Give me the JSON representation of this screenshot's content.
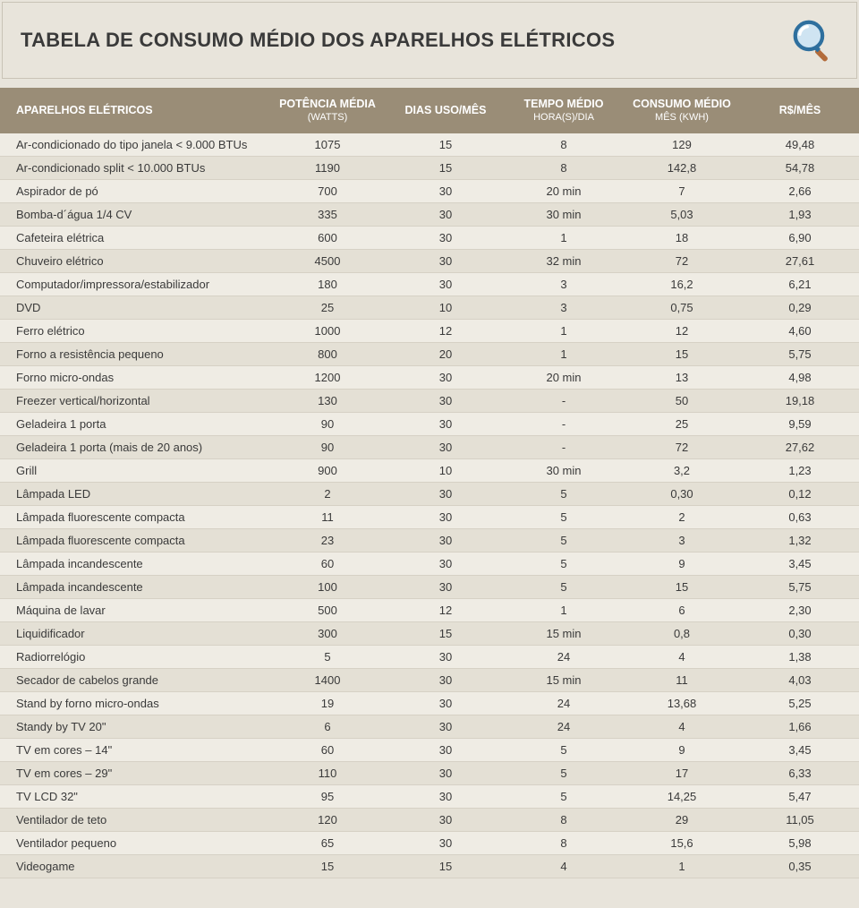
{
  "title": "TABELA DE CONSUMO MÉDIO DOS APARELHOS ELÉTRICOS",
  "icon": "magnifier-icon",
  "columns": [
    {
      "label": "APARELHOS ELÉTRICOS",
      "sub": ""
    },
    {
      "label": "POTÊNCIA MÉDIA",
      "sub": "(WATTS)"
    },
    {
      "label": "DIAS USO/MÊS",
      "sub": ""
    },
    {
      "label": "TEMPO MÉDIO",
      "sub": "HORA(S)/DIA"
    },
    {
      "label": "CONSUMO MÉDIO",
      "sub": "MÊS (KWH)"
    },
    {
      "label": "R$/MÊS",
      "sub": ""
    }
  ],
  "rows": [
    [
      "Ar-condicionado do tipo janela < 9.000 BTUs",
      "1075",
      "15",
      "8",
      "129",
      "49,48"
    ],
    [
      "Ar-condicionado split < 10.000 BTUs",
      "1190",
      "15",
      "8",
      "142,8",
      "54,78"
    ],
    [
      "Aspirador de pó",
      "700",
      "30",
      "20 min",
      "7",
      "2,66"
    ],
    [
      "Bomba-d´água 1/4 CV",
      "335",
      "30",
      "30 min",
      "5,03",
      "1,93"
    ],
    [
      "Cafeteira elétrica",
      "600",
      "30",
      "1",
      "18",
      "6,90"
    ],
    [
      "Chuveiro elétrico",
      "4500",
      "30",
      "32 min",
      "72",
      "27,61"
    ],
    [
      "Computador/impressora/estabilizador",
      "180",
      "30",
      "3",
      "16,2",
      "6,21"
    ],
    [
      "DVD",
      "25",
      "10",
      "3",
      "0,75",
      "0,29"
    ],
    [
      "Ferro elétrico",
      "1000",
      "12",
      "1",
      "12",
      "4,60"
    ],
    [
      "Forno a resistência pequeno",
      "800",
      "20",
      "1",
      "15",
      "5,75"
    ],
    [
      "Forno micro-ondas",
      "1200",
      "30",
      "20 min",
      "13",
      "4,98"
    ],
    [
      "Freezer vertical/horizontal",
      "130",
      "30",
      "-",
      "50",
      "19,18"
    ],
    [
      "Geladeira 1 porta",
      "90",
      "30",
      "-",
      "25",
      "9,59"
    ],
    [
      "Geladeira 1 porta (mais de 20 anos)",
      "90",
      "30",
      "-",
      "72",
      "27,62"
    ],
    [
      "Grill",
      "900",
      "10",
      "30 min",
      "3,2",
      "1,23"
    ],
    [
      "Lâmpada LED",
      "2",
      "30",
      "5",
      "0,30",
      "0,12"
    ],
    [
      "Lâmpada fluorescente compacta",
      "11",
      "30",
      "5",
      "2",
      "0,63"
    ],
    [
      "Lâmpada fluorescente compacta",
      "23",
      "30",
      "5",
      "3",
      "1,32"
    ],
    [
      "Lâmpada incandescente",
      "60",
      "30",
      "5",
      "9",
      "3,45"
    ],
    [
      "Lâmpada incandescente",
      "100",
      "30",
      "5",
      "15",
      "5,75"
    ],
    [
      "Máquina de lavar",
      "500",
      "12",
      "1",
      "6",
      "2,30"
    ],
    [
      "Liquidificador",
      "300",
      "15",
      "15 min",
      "0,8",
      "0,30"
    ],
    [
      "Radiorrelógio",
      "5",
      "30",
      "24",
      "4",
      "1,38"
    ],
    [
      "Secador de cabelos grande",
      "1400",
      "30",
      "15 min",
      "11",
      "4,03"
    ],
    [
      "Stand by forno micro-ondas",
      "19",
      "30",
      "24",
      "13,68",
      "5,25"
    ],
    [
      "Standy by TV 20\"",
      "6",
      "30",
      "24",
      "4",
      "1,66"
    ],
    [
      "TV em cores – 14\"",
      "60",
      "30",
      "5",
      "9",
      "3,45"
    ],
    [
      "TV em cores – 29\"",
      "110",
      "30",
      "5",
      "17",
      "6,33"
    ],
    [
      "TV LCD 32\"",
      "95",
      "30",
      "5",
      "14,25",
      "5,47"
    ],
    [
      "Ventilador de teto",
      "120",
      "30",
      "8",
      "29",
      "11,05"
    ],
    [
      "Ventilador pequeno",
      "65",
      "30",
      "8",
      "15,6",
      "5,98"
    ],
    [
      "Videogame",
      "15",
      "15",
      "4",
      "1",
      "0,35"
    ]
  ],
  "style": {
    "header_bg": "#9a8d77",
    "header_fg": "#ffffff",
    "page_bg": "#e8e4db",
    "row_odd_bg": "#efece4",
    "row_even_bg": "#e4e0d5",
    "title_border": "#c9c3b6",
    "title_fontsize": 22,
    "header_fontsize": 12.5,
    "cell_fontsize": 13,
    "icon_colors": {
      "lens": "#2e6f9e",
      "glass": "#cfe4f2",
      "handle": "#b36b3a"
    }
  }
}
